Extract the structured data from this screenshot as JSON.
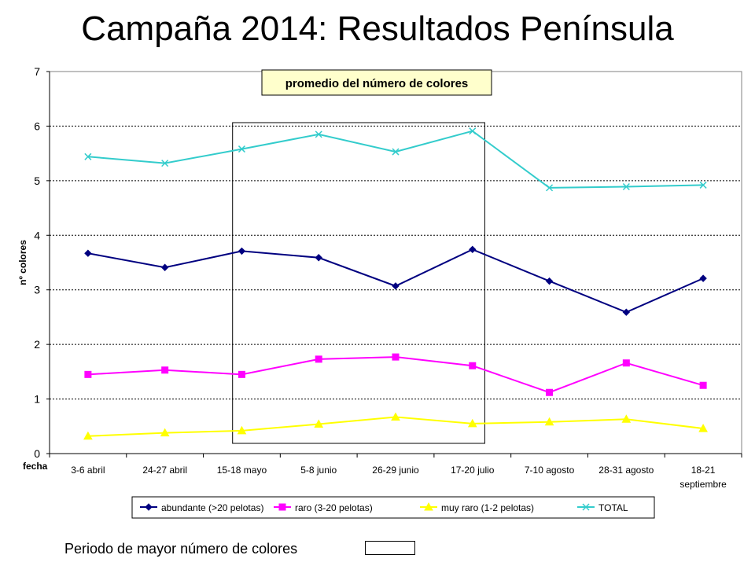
{
  "title": "Campaña 2014: Resultados Península",
  "note": {
    "text": "Periodo de mayor número de colores"
  },
  "chart_data": {
    "type": "line",
    "title": "promedio del número de colores",
    "xlabel": "fecha",
    "ylabel": "nº colores",
    "ylim": [
      0,
      7
    ],
    "yticks": [
      "0",
      "1",
      "2",
      "3",
      "4",
      "5",
      "6",
      "7"
    ],
    "grid": true,
    "legend_position": "bottom",
    "categories": [
      "3-6 abril",
      "24-27 abril",
      "15-18 mayo",
      "5-8 junio",
      "26-29 junio",
      "17-20 julio",
      "7-10 agosto",
      "28-31 agosto",
      "18-21 septiembre"
    ],
    "highlight_period": [
      "15-18 mayo",
      "17-20 julio"
    ],
    "series": [
      {
        "name": "abundante (>20 pelotas)",
        "color": "#000080",
        "marker": "diamond",
        "values": [
          3.67,
          3.41,
          3.71,
          3.59,
          3.07,
          3.74,
          3.16,
          2.59,
          3.21
        ]
      },
      {
        "name": "raro (3-20 pelotas)",
        "color": "#FF00FF",
        "marker": "square",
        "values": [
          1.45,
          1.53,
          1.45,
          1.73,
          1.77,
          1.61,
          1.12,
          1.66,
          1.25
        ]
      },
      {
        "name": "muy raro (1-2 pelotas)",
        "color": "#FFFF00",
        "marker": "triangle",
        "values": [
          0.32,
          0.38,
          0.42,
          0.54,
          0.67,
          0.55,
          0.58,
          0.63,
          0.46
        ]
      },
      {
        "name": "TOTAL",
        "color": "#33CCCC",
        "marker": "x",
        "values": [
          5.44,
          5.32,
          5.58,
          5.85,
          5.53,
          5.91,
          4.87,
          4.89,
          4.92
        ]
      }
    ]
  }
}
